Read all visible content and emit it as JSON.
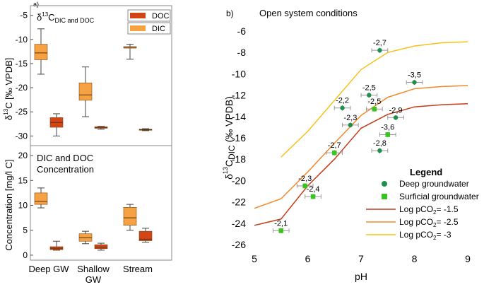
{
  "chart_data": [
    {
      "type": "box",
      "panel_label": "a)",
      "panels": [
        {
          "id": "isotope",
          "title_main": "δ",
          "title_sup": "13",
          "title_base": "C",
          "title_sub": "DIC and DOC",
          "ylabel_prefix": "δ",
          "ylabel_sup": "13",
          "ylabel_rest": "C [‰ VPDB]",
          "ylim": [
            -32,
            -3
          ],
          "yticks": [
            -5,
            -10,
            -15,
            -20,
            -25,
            -30
          ],
          "ytick_labels": [
            "-5",
            "-10",
            "-15",
            "-20",
            "-25",
            "-30"
          ],
          "boxes": [
            {
              "group": "Deep GW",
              "series": "DIC",
              "min": -17.2,
              "q1": -14.2,
              "median": -12.8,
              "q3": -11.0,
              "max": -7.8
            },
            {
              "group": "Deep GW",
              "series": "DOC",
              "min": -30.0,
              "q1": -28.2,
              "median": -27.2,
              "q3": -26.2,
              "max": -25.4
            },
            {
              "group": "Shallow GW",
              "series": "DIC",
              "min": -26.0,
              "q1": -22.6,
              "median": -21.5,
              "q3": -19.0,
              "max": -15.7
            },
            {
              "group": "Shallow GW",
              "series": "DOC",
              "min": -28.6,
              "q1": -28.4,
              "median": -28.3,
              "q3": -28.1,
              "max": -28.0
            },
            {
              "group": "Stream",
              "series": "DIC",
              "min": -14.1,
              "q1": -11.8,
              "median": -11.6,
              "q3": -11.5,
              "max": -11.0
            },
            {
              "group": "Stream",
              "series": "DOC",
              "min": -28.9,
              "q1": -28.8,
              "median": -28.7,
              "q3": -28.6,
              "max": -28.5
            }
          ]
        },
        {
          "id": "concentration",
          "title_line1": "DIC and DOC",
          "title_line2": "Concentration",
          "ylabel": "Concentration [mg/l C]",
          "ylim": [
            -1,
            22
          ],
          "yticks": [
            0,
            5,
            10,
            15,
            20
          ],
          "ytick_labels": [
            "0",
            "5",
            "10",
            "15",
            "20"
          ],
          "boxes": [
            {
              "group": "Deep GW",
              "series": "DIC",
              "min": 9.5,
              "q1": 10.2,
              "median": 10.8,
              "q3": 12.5,
              "max": 13.5
            },
            {
              "group": "Deep GW",
              "series": "DOC",
              "min": 1.0,
              "q1": 1.1,
              "median": 1.4,
              "q3": 1.7,
              "max": 2.8
            },
            {
              "group": "Shallow GW",
              "series": "DIC",
              "min": 2.3,
              "q1": 2.8,
              "median": 3.5,
              "q3": 4.3,
              "max": 4.8
            },
            {
              "group": "Shallow GW",
              "series": "DOC",
              "min": 1.0,
              "q1": 1.3,
              "median": 1.6,
              "q3": 2.1,
              "max": 2.4
            },
            {
              "group": "Stream",
              "series": "DIC",
              "min": 5.0,
              "q1": 6.0,
              "median": 7.5,
              "q3": 9.6,
              "max": 10.2
            },
            {
              "group": "Stream",
              "series": "DOC",
              "min": 2.6,
              "q1": 2.9,
              "median": 3.2,
              "q3": 4.8,
              "max": 5.4
            }
          ]
        }
      ],
      "categories": [
        "Deep GW",
        "Shallow GW",
        "Stream"
      ],
      "category_labels": [
        [
          "Deep GW"
        ],
        [
          "Shallow",
          "GW"
        ],
        [
          "Stream"
        ]
      ],
      "legend": [
        {
          "name": "DOC",
          "color": "#d34516"
        },
        {
          "name": "DIC",
          "color": "#f6a242"
        }
      ],
      "legend_position": "top-right",
      "colors": {
        "DIC": "#f6a242",
        "DOC": "#d34516"
      }
    },
    {
      "type": "scatter",
      "panel_label": "b)",
      "title": "Open system conditions",
      "xlabel": "pH",
      "ylabel_prefix": "δ",
      "ylabel_sup": "13",
      "ylabel_base": "C",
      "ylabel_sub": "DIC",
      "ylabel_rest": " (‰ VPDB)",
      "xlim": [
        5,
        9
      ],
      "ylim": [
        -26,
        -6
      ],
      "xticks": [
        5,
        6,
        7,
        8,
        9
      ],
      "xtick_labels": [
        "5",
        "6",
        "7",
        "8",
        "9"
      ],
      "yticks": [
        -6,
        -8,
        -10,
        -12,
        -14,
        -16,
        -18,
        -20,
        -22,
        -24,
        -26
      ],
      "ytick_labels": [
        "-6",
        "-8",
        "-10",
        "-12",
        "-14",
        "-16",
        "-18",
        "-20",
        "-22",
        "-24",
        "-26"
      ],
      "points": [
        {
          "series": "Deep groundwater",
          "x": 7.35,
          "y": -7.8,
          "xerr": 0.15,
          "yerr": 0.25,
          "label": "-2,7"
        },
        {
          "series": "Deep groundwater",
          "x": 8.0,
          "y": -10.8,
          "xerr": 0.15,
          "yerr": 0.25,
          "label": "-3,5"
        },
        {
          "series": "Deep groundwater",
          "x": 7.15,
          "y": -12.0,
          "xerr": 0.15,
          "yerr": 0.25,
          "label": "-2,5"
        },
        {
          "series": "Deep groundwater",
          "x": 6.65,
          "y": -13.2,
          "xerr": 0.15,
          "yerr": 0.25,
          "label": "-2,2"
        },
        {
          "series": "Deep groundwater",
          "x": 7.65,
          "y": -14.1,
          "xerr": 0.15,
          "yerr": 0.25,
          "label": "-2,9"
        },
        {
          "series": "Deep groundwater",
          "x": 6.8,
          "y": -14.8,
          "xerr": 0.15,
          "yerr": 0.25,
          "label": "-2,3"
        },
        {
          "series": "Deep groundwater",
          "x": 7.35,
          "y": -17.2,
          "xerr": 0.15,
          "yerr": 0.25,
          "label": "-2,8"
        },
        {
          "series": "Surficial groundwater",
          "x": 7.25,
          "y": -13.3,
          "xerr": 0.15,
          "yerr": 0.25,
          "label": "-2,5"
        },
        {
          "series": "Surficial groundwater",
          "x": 7.5,
          "y": -15.7,
          "xerr": 0.15,
          "yerr": 0.25,
          "label": "-3,6"
        },
        {
          "series": "Surficial groundwater",
          "x": 6.5,
          "y": -17.4,
          "xerr": 0.15,
          "yerr": 0.25,
          "label": "-2,7"
        },
        {
          "series": "Surficial groundwater",
          "x": 5.95,
          "y": -20.5,
          "xerr": 0.15,
          "yerr": 0.25,
          "label": "-2,3"
        },
        {
          "series": "Surficial groundwater",
          "x": 6.1,
          "y": -21.5,
          "xerr": 0.15,
          "yerr": 0.25,
          "label": "-2,4"
        },
        {
          "series": "Surficial groundwater",
          "x": 5.5,
          "y": -24.7,
          "xerr": 0.15,
          "yerr": 0.25,
          "label": "-2,1"
        }
      ],
      "lines": [
        {
          "name": "Log pCO2= -1.5",
          "color": "#c43c1a",
          "x": [
            5.0,
            5.5,
            6.0,
            6.5,
            7.0,
            7.5,
            8.0,
            8.5,
            9.0
          ],
          "y": [
            -24.2,
            -23.6,
            -20.5,
            -18.0,
            -15.1,
            -13.8,
            -13.1,
            -12.9,
            -12.8
          ]
        },
        {
          "name": "Log pCO2= -2.5",
          "color": "#f08a2c",
          "x": [
            5.0,
            5.5,
            6.0,
            6.5,
            7.0,
            7.5,
            8.0,
            8.5,
            9.0
          ],
          "y": [
            -22.6,
            -21.7,
            -19.2,
            -16.5,
            -13.9,
            -12.2,
            -11.4,
            -11.2,
            -11.1
          ]
        },
        {
          "name": "Log pCO2= -3",
          "color": "#f6c21a",
          "x": [
            5.5,
            6.0,
            6.5,
            7.0,
            7.5,
            8.0,
            8.5,
            9.0
          ],
          "y": [
            -17.8,
            -15.4,
            -12.5,
            -9.6,
            -8.0,
            -7.4,
            -7.1,
            -7.0
          ]
        }
      ],
      "legend": {
        "title": "Legend",
        "entries": [
          {
            "label": "Deep groundwater",
            "marker": "circle",
            "color": "#1f8f4a"
          },
          {
            "label": "Surficial groundwater",
            "marker": "square",
            "color": "#39c41f"
          },
          {
            "label_prefix": "Log pCO",
            "label_sub": "2",
            "label_suffix": "=  -1.5",
            "marker": "line",
            "color": "#c43c1a"
          },
          {
            "label_prefix": "Log pCO",
            "label_sub": "2",
            "label_suffix": "= -2.5",
            "marker": "line",
            "color": "#f08a2c"
          },
          {
            "label_prefix": "Log pCO",
            "label_sub": "2",
            "label_suffix": "= -3",
            "marker": "line",
            "color": "#f6c21a"
          }
        ],
        "position": "bottom-right"
      }
    }
  ]
}
